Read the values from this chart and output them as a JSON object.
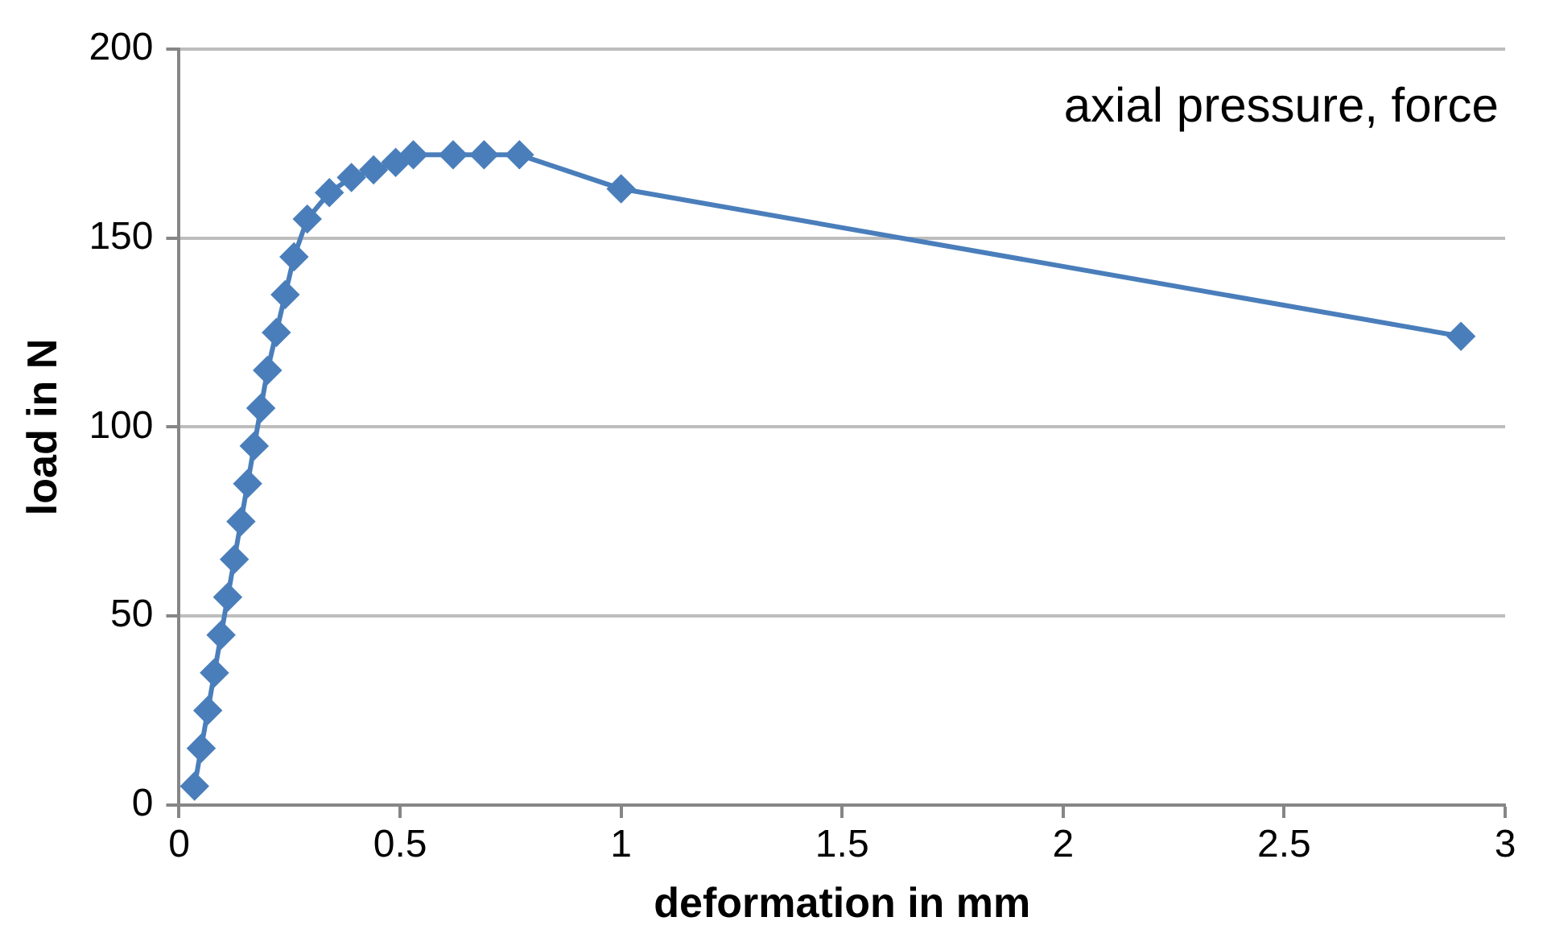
{
  "chart_data": {
    "type": "line",
    "xlabel": "deformation in mm",
    "ylabel": "load in N",
    "annotations": [
      "axial pressure, force"
    ],
    "x": [
      0.035,
      0.05,
      0.065,
      0.08,
      0.095,
      0.11,
      0.125,
      0.14,
      0.155,
      0.17,
      0.185,
      0.2,
      0.22,
      0.24,
      0.26,
      0.29,
      0.34,
      0.39,
      0.44,
      0.49,
      0.53,
      0.62,
      0.69,
      0.77,
      1.0,
      2.9
    ],
    "series": [
      {
        "color": "#4a7ebb",
        "values": [
          5,
          15,
          25,
          35,
          45,
          55,
          65,
          75,
          85,
          95,
          105,
          115,
          125,
          135,
          145,
          155,
          162,
          166,
          168,
          170,
          172,
          172,
          172,
          172,
          163,
          124
        ]
      }
    ],
    "xlim": [
      0,
      3
    ],
    "xticks": [
      0,
      0.5,
      1,
      1.5,
      2,
      2.5,
      3
    ],
    "ylim": [
      0,
      200
    ],
    "yticks": [
      0,
      50,
      100,
      150,
      200
    ],
    "grid": "y",
    "legend": false,
    "marker": "diamond",
    "line_style": "solid"
  }
}
